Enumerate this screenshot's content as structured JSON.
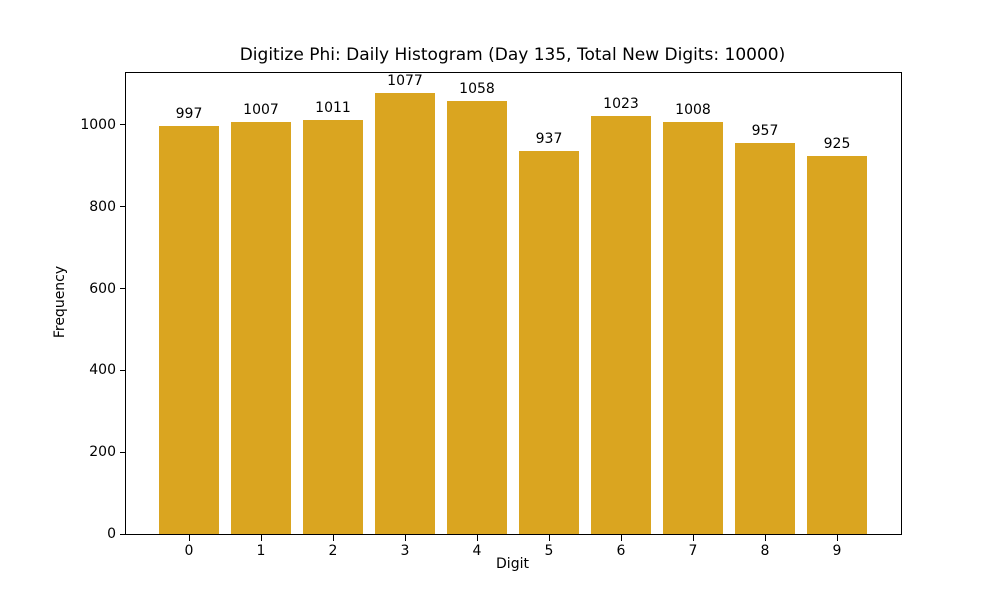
{
  "chart_data": {
    "type": "bar",
    "title": "Digitize Phi: Daily Histogram (Day 135, Total New Digits: 10000)",
    "xlabel": "Digit",
    "ylabel": "Frequency",
    "categories": [
      "0",
      "1",
      "2",
      "3",
      "4",
      "5",
      "6",
      "7",
      "8",
      "9"
    ],
    "values": [
      997,
      1007,
      1011,
      1077,
      1058,
      937,
      1023,
      1008,
      957,
      925
    ],
    "bar_value_labels": [
      "997",
      "1007",
      "1011",
      "1077",
      "1058",
      "937",
      "1023",
      "1008",
      "957",
      "925"
    ],
    "yticks": [
      0,
      200,
      400,
      600,
      800,
      1000
    ],
    "ytick_labels": [
      "0",
      "200",
      "400",
      "600",
      "800",
      "1000"
    ],
    "ylim": [
      0,
      1127
    ],
    "grid": false,
    "legend_position": "none",
    "bar_color": "#DAA520",
    "axis_color": "#000000",
    "background_color": "#ffffff"
  }
}
